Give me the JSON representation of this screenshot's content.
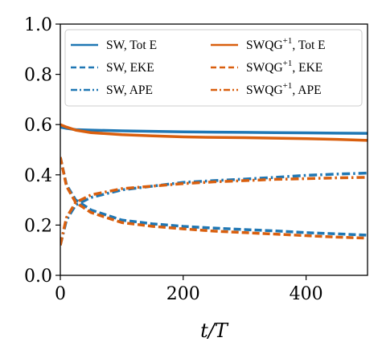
{
  "chart_data": {
    "type": "line",
    "xlabel": "t/T",
    "ylabel": "",
    "xlim": [
      0,
      500
    ],
    "ylim": [
      0,
      1.0
    ],
    "xticks": [
      0,
      200,
      400
    ],
    "yticks": [
      0.0,
      0.2,
      0.4,
      0.6,
      0.8,
      1.0
    ],
    "xtick_labels": [
      "0",
      "200",
      "400"
    ],
    "ytick_labels": [
      "0.0",
      "0.2",
      "0.4",
      "0.6",
      "0.8",
      "1.0"
    ],
    "grid": false,
    "legend_position": "top",
    "colors": {
      "SW": "#1f77b4",
      "SWQG": "#d95f0e"
    },
    "series": [
      {
        "name": "SW, Tot E",
        "model": "SW",
        "quantity": "Tot E",
        "style": "solid",
        "x": [
          0,
          10,
          25,
          50,
          100,
          150,
          200,
          250,
          300,
          350,
          400,
          450,
          500
        ],
        "y": [
          0.59,
          0.585,
          0.58,
          0.578,
          0.575,
          0.573,
          0.571,
          0.57,
          0.569,
          0.568,
          0.567,
          0.566,
          0.565
        ]
      },
      {
        "name": "SW, EKE",
        "model": "SW",
        "quantity": "EKE",
        "style": "dashed",
        "x": [
          0,
          10,
          25,
          50,
          100,
          150,
          200,
          250,
          300,
          350,
          400,
          450,
          500
        ],
        "y": [
          0.47,
          0.36,
          0.3,
          0.26,
          0.22,
          0.205,
          0.195,
          0.188,
          0.182,
          0.177,
          0.17,
          0.165,
          0.16
        ]
      },
      {
        "name": "SW, APE",
        "model": "SW",
        "quantity": "APE",
        "style": "dashdot",
        "x": [
          0,
          10,
          25,
          50,
          100,
          150,
          200,
          250,
          300,
          350,
          400,
          450,
          500
        ],
        "y": [
          0.12,
          0.22,
          0.28,
          0.31,
          0.34,
          0.355,
          0.37,
          0.377,
          0.383,
          0.39,
          0.398,
          0.403,
          0.407
        ]
      },
      {
        "name": "SWQG⁺¹, Tot E",
        "model": "SWQG",
        "quantity": "Tot E",
        "style": "solid",
        "x": [
          0,
          10,
          25,
          50,
          100,
          150,
          200,
          250,
          300,
          350,
          400,
          450,
          500
        ],
        "y": [
          0.6,
          0.59,
          0.578,
          0.568,
          0.56,
          0.555,
          0.551,
          0.549,
          0.548,
          0.546,
          0.544,
          0.541,
          0.537
        ]
      },
      {
        "name": "SWQG⁺¹, EKE",
        "model": "SWQG",
        "quantity": "EKE",
        "style": "dashed",
        "x": [
          0,
          10,
          25,
          50,
          100,
          150,
          200,
          250,
          300,
          350,
          400,
          450,
          500
        ],
        "y": [
          0.47,
          0.355,
          0.29,
          0.25,
          0.21,
          0.195,
          0.185,
          0.176,
          0.17,
          0.164,
          0.158,
          0.152,
          0.148
        ]
      },
      {
        "name": "SWQG⁺¹, APE",
        "model": "SWQG",
        "quantity": "APE",
        "style": "dashdot",
        "x": [
          0,
          10,
          25,
          50,
          100,
          150,
          200,
          250,
          300,
          350,
          400,
          450,
          500
        ],
        "y": [
          0.12,
          0.23,
          0.29,
          0.32,
          0.345,
          0.355,
          0.365,
          0.372,
          0.377,
          0.382,
          0.385,
          0.388,
          0.39
        ]
      }
    ]
  },
  "legend": {
    "items": [
      {
        "label_main": "SW, Tot E",
        "label_sup": "",
        "label_tail": "",
        "model": "SW",
        "style": "solid"
      },
      {
        "label_main": "SW, EKE",
        "label_sup": "",
        "label_tail": "",
        "model": "SW",
        "style": "dashed"
      },
      {
        "label_main": "SW, APE",
        "label_sup": "",
        "label_tail": "",
        "model": "SW",
        "style": "dashdot"
      },
      {
        "label_main": "SWQG",
        "label_sup": "+1",
        "label_tail": ", Tot E",
        "model": "SWQG",
        "style": "solid"
      },
      {
        "label_main": "SWQG",
        "label_sup": "+1",
        "label_tail": ", EKE",
        "model": "SWQG",
        "style": "dashed"
      },
      {
        "label_main": "SWQG",
        "label_sup": "+1",
        "label_tail": ", APE",
        "model": "SWQG",
        "style": "dashdot"
      }
    ]
  }
}
